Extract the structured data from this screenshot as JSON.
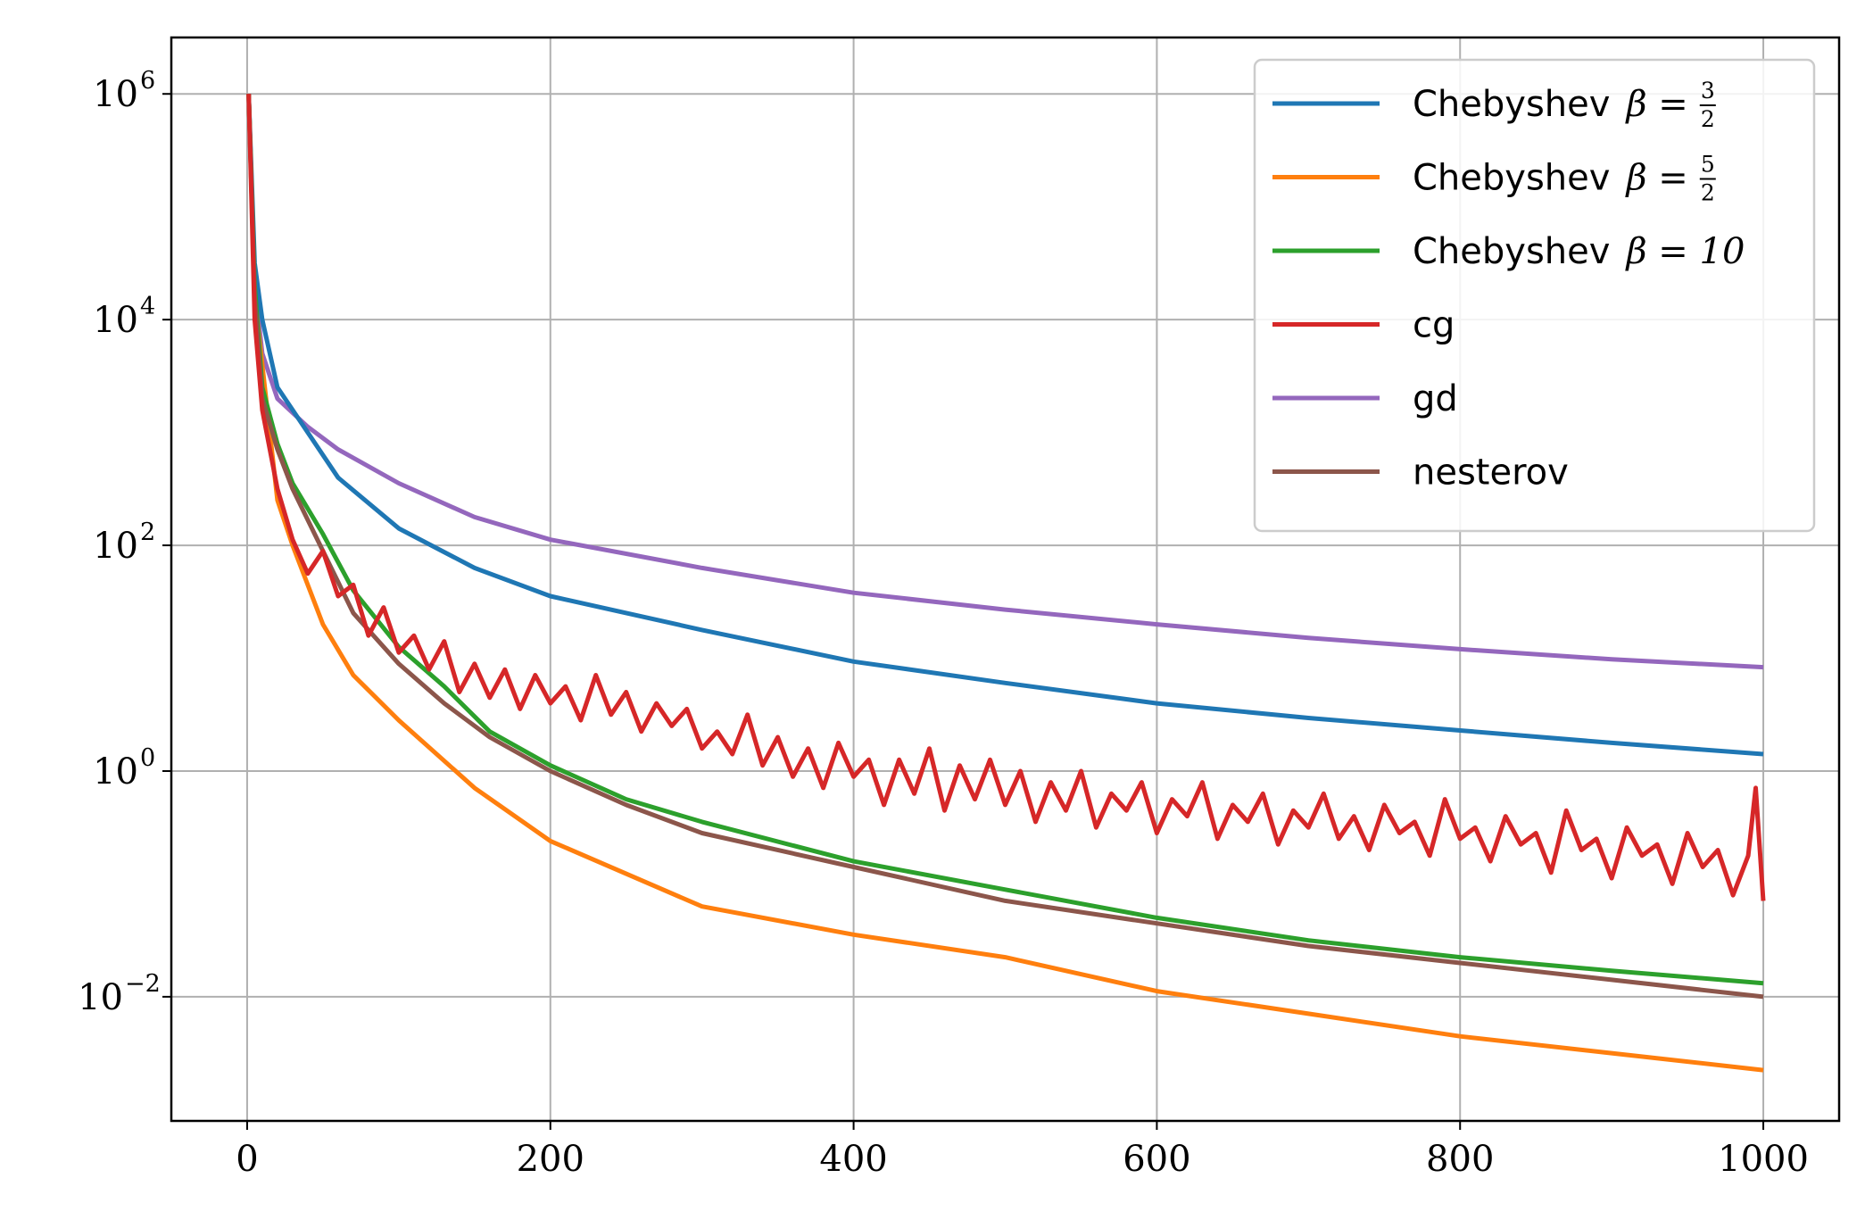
{
  "chart_data": {
    "type": "line",
    "title": "",
    "xlabel": "",
    "ylabel": "",
    "xlim": [
      -50,
      1050
    ],
    "ylim_log10": [
      -3.1,
      6.5
    ],
    "yscale": "log",
    "grid": true,
    "legend_position": "top-right",
    "x_ticks": [
      {
        "value": 0,
        "label": "0"
      },
      {
        "value": 200,
        "label": "200"
      },
      {
        "value": 400,
        "label": "400"
      },
      {
        "value": 600,
        "label": "600"
      },
      {
        "value": 800,
        "label": "800"
      },
      {
        "value": 1000,
        "label": "1000"
      }
    ],
    "y_ticks": [
      {
        "log10": 6,
        "base": "10",
        "exp": "6"
      },
      {
        "log10": 4,
        "base": "10",
        "exp": "4"
      },
      {
        "log10": 2,
        "base": "10",
        "exp": "2"
      },
      {
        "log10": 0,
        "base": "10",
        "exp": "0"
      },
      {
        "log10": -2,
        "base": "10",
        "exp": "−2"
      }
    ],
    "series": [
      {
        "name": "Chebyshev β = 3/2",
        "legend": {
          "text": "Chebyshev",
          "sym": "β =",
          "num": "3",
          "den": "2",
          "value": ""
        },
        "color": "#1f77b4",
        "x": [
          1,
          5,
          10,
          20,
          40,
          60,
          100,
          150,
          200,
          300,
          400,
          500,
          600,
          700,
          800,
          900,
          1000
        ],
        "log10_y": [
          6.0,
          4.5,
          4.0,
          3.4,
          3.0,
          2.6,
          2.15,
          1.8,
          1.55,
          1.25,
          0.97,
          0.78,
          0.6,
          0.47,
          0.36,
          0.25,
          0.15
        ]
      },
      {
        "name": "Chebyshev β = 5/2",
        "legend": {
          "text": "Chebyshev",
          "sym": "β =",
          "num": "5",
          "den": "2",
          "value": ""
        },
        "color": "#ff7f0e",
        "x": [
          1,
          5,
          10,
          20,
          30,
          50,
          70,
          100,
          150,
          200,
          300,
          400,
          500,
          600,
          700,
          800,
          900,
          1000
        ],
        "log10_y": [
          6.0,
          4.2,
          3.6,
          2.4,
          2.0,
          1.3,
          0.85,
          0.45,
          -0.15,
          -0.62,
          -1.2,
          -1.45,
          -1.65,
          -1.95,
          -2.15,
          -2.35,
          -2.5,
          -2.65
        ]
      },
      {
        "name": "Chebyshev β = 10",
        "legend": {
          "text": "Chebyshev",
          "sym": "β = 10",
          "num": "",
          "den": "",
          "value": ""
        },
        "color": "#2ca02c",
        "x": [
          1,
          5,
          10,
          20,
          30,
          50,
          70,
          100,
          130,
          160,
          200,
          250,
          300,
          400,
          500,
          600,
          700,
          800,
          900,
          1000
        ],
        "log10_y": [
          6.0,
          4.3,
          3.4,
          2.9,
          2.55,
          2.1,
          1.6,
          1.1,
          0.75,
          0.35,
          0.05,
          -0.25,
          -0.45,
          -0.8,
          -1.05,
          -1.3,
          -1.5,
          -1.65,
          -1.77,
          -1.88
        ]
      },
      {
        "name": "cg",
        "legend": {
          "text": "cg",
          "sym": "",
          "num": "",
          "den": "",
          "value": ""
        },
        "color": "#d62728",
        "x": [
          1,
          5,
          10,
          20,
          30,
          40,
          50,
          60,
          70,
          80,
          90,
          100,
          110,
          120,
          130,
          140,
          150,
          160,
          170,
          180,
          190,
          200,
          210,
          220,
          230,
          240,
          250,
          260,
          270,
          280,
          290,
          300,
          310,
          320,
          330,
          340,
          350,
          360,
          370,
          380,
          390,
          400,
          410,
          420,
          430,
          440,
          450,
          460,
          470,
          480,
          490,
          500,
          510,
          520,
          530,
          540,
          550,
          560,
          570,
          580,
          590,
          600,
          610,
          620,
          630,
          640,
          650,
          660,
          670,
          680,
          690,
          700,
          710,
          720,
          730,
          740,
          750,
          760,
          770,
          780,
          790,
          800,
          810,
          820,
          830,
          840,
          850,
          860,
          870,
          880,
          890,
          900,
          910,
          920,
          930,
          940,
          950,
          960,
          970,
          980,
          990,
          995,
          1000
        ],
        "log10_y": [
          6.0,
          4.0,
          3.2,
          2.5,
          2.05,
          1.75,
          1.95,
          1.55,
          1.65,
          1.2,
          1.45,
          1.05,
          1.2,
          0.9,
          1.15,
          0.7,
          0.95,
          0.65,
          0.9,
          0.55,
          0.85,
          0.6,
          0.75,
          0.45,
          0.85,
          0.5,
          0.7,
          0.35,
          0.6,
          0.4,
          0.55,
          0.2,
          0.35,
          0.15,
          0.5,
          0.05,
          0.3,
          -0.05,
          0.2,
          -0.15,
          0.25,
          -0.05,
          0.1,
          -0.3,
          0.1,
          -0.2,
          0.2,
          -0.35,
          0.05,
          -0.25,
          0.1,
          -0.3,
          0.0,
          -0.45,
          -0.1,
          -0.35,
          0.0,
          -0.5,
          -0.2,
          -0.35,
          -0.1,
          -0.55,
          -0.25,
          -0.4,
          -0.1,
          -0.6,
          -0.3,
          -0.45,
          -0.2,
          -0.65,
          -0.35,
          -0.5,
          -0.2,
          -0.6,
          -0.4,
          -0.7,
          -0.3,
          -0.55,
          -0.45,
          -0.75,
          -0.25,
          -0.6,
          -0.5,
          -0.8,
          -0.4,
          -0.65,
          -0.55,
          -0.9,
          -0.35,
          -0.7,
          -0.6,
          -0.95,
          -0.5,
          -0.75,
          -0.65,
          -1.0,
          -0.55,
          -0.85,
          -0.7,
          -1.1,
          -0.75,
          -0.15,
          -1.15
        ]
      },
      {
        "name": "gd",
        "legend": {
          "text": "gd",
          "sym": "",
          "num": "",
          "den": "",
          "value": ""
        },
        "color": "#9467bd",
        "x": [
          1,
          5,
          10,
          20,
          40,
          60,
          100,
          150,
          200,
          300,
          400,
          500,
          600,
          700,
          800,
          900,
          1000
        ],
        "log10_y": [
          6.0,
          4.3,
          3.7,
          3.3,
          3.05,
          2.85,
          2.55,
          2.25,
          2.05,
          1.8,
          1.58,
          1.43,
          1.3,
          1.18,
          1.08,
          0.99,
          0.92
        ]
      },
      {
        "name": "nesterov",
        "legend": {
          "text": "nesterov",
          "sym": "",
          "num": "",
          "den": "",
          "value": ""
        },
        "color": "#8c564b",
        "x": [
          1,
          5,
          10,
          20,
          30,
          50,
          70,
          100,
          130,
          160,
          200,
          250,
          300,
          400,
          500,
          600,
          700,
          800,
          900,
          1000
        ],
        "log10_y": [
          6.0,
          4.2,
          3.3,
          2.85,
          2.5,
          1.95,
          1.4,
          0.95,
          0.6,
          0.3,
          0.0,
          -0.3,
          -0.55,
          -0.85,
          -1.15,
          -1.35,
          -1.55,
          -1.7,
          -1.85,
          -2.0
        ]
      }
    ]
  }
}
